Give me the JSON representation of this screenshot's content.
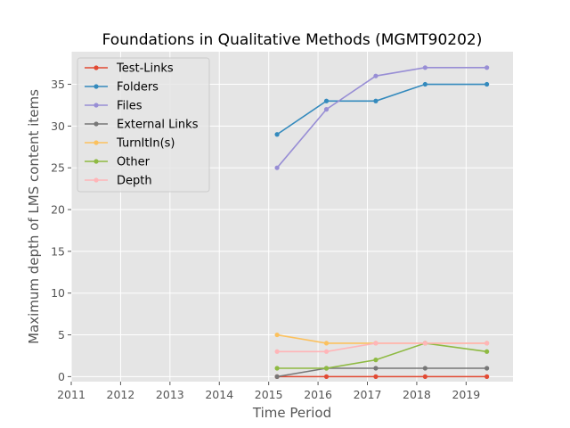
{
  "chart_data": {
    "type": "line",
    "title": "Foundations in Qualitative Methods (MGMT90202)",
    "xlabel": "Time Period",
    "ylabel": "Maximum depth of LMS content items",
    "xlim": [
      2011.0,
      2019.95
    ],
    "ylim": [
      -0.6,
      38.9
    ],
    "xticks": [
      2011,
      2012,
      2013,
      2014,
      2015,
      2016,
      2017,
      2018,
      2019
    ],
    "xtick_labels": [
      "2011",
      "2012",
      "2013",
      "2014",
      "2015",
      "2016",
      "2017",
      "2018",
      "2019"
    ],
    "yticks": [
      0,
      5,
      10,
      15,
      20,
      25,
      30,
      35
    ],
    "ytick_labels": [
      "0",
      "5",
      "10",
      "15",
      "20",
      "25",
      "30",
      "35"
    ],
    "grid": true,
    "legend_position": "top-left",
    "x": [
      2015.17,
      2016.17,
      2017.17,
      2018.17,
      2019.42
    ],
    "series": [
      {
        "name": "Test-Links",
        "color": "#e24a33",
        "values": [
          0,
          0,
          0,
          0,
          0
        ]
      },
      {
        "name": "Folders",
        "color": "#348abd",
        "values": [
          29,
          33,
          33,
          35,
          35
        ]
      },
      {
        "name": "Files",
        "color": "#988ed5",
        "values": [
          25,
          32,
          36,
          37,
          37
        ]
      },
      {
        "name": "External Links",
        "color": "#777777",
        "values": [
          0,
          1,
          1,
          1,
          1
        ]
      },
      {
        "name": "TurnItIn(s)",
        "color": "#fbc15e",
        "values": [
          5,
          4,
          4,
          4,
          4
        ]
      },
      {
        "name": "Other",
        "color": "#8eba42",
        "values": [
          1,
          1,
          2,
          4,
          3
        ]
      },
      {
        "name": "Depth",
        "color": "#ffb5b8",
        "values": [
          3,
          3,
          4,
          4,
          4
        ]
      }
    ],
    "style": {
      "plot_background": "#e5e5e5",
      "grid_color": "#ffffff",
      "figure_background": "#ffffff"
    }
  }
}
